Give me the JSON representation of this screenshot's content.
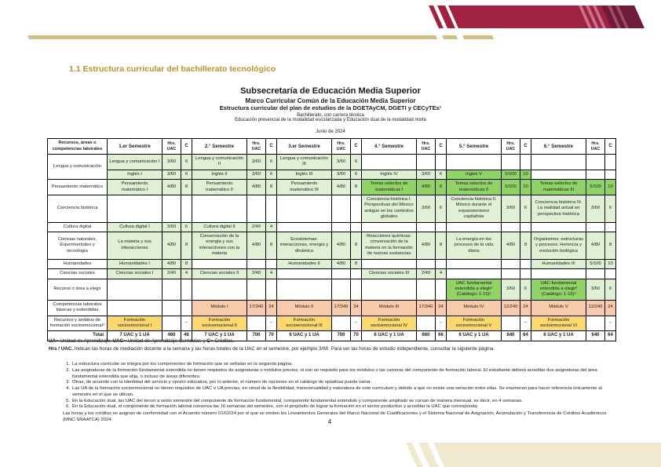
{
  "page": {
    "section_title": "1.1 Estructura curricular del bachillerato tecnológico",
    "number": "4"
  },
  "header": {
    "title": "Subsecretaría de Educación Media Superior",
    "line2": "Marco Curricular Común de la Educación Media Superior",
    "line3": "Estructura curricular del plan de estudios de la DGETAyCM, DGETI y CECyTEs¹",
    "line4": "Bachillerato, con carrera técnica",
    "line5": "Educación presencial de la modalidad escolarizada y Educación dual de la modalidad mixta",
    "date": "Junio de 2024"
  },
  "colors": {
    "guinda": "#9f2241",
    "guinda_dark": "#6d1a3b",
    "gold_line": "#d2bf85",
    "title_gold": "#b8912f",
    "cream_band": "#f0e9cf",
    "green_light": "#dff0d4",
    "green_dark": "#90d468",
    "orange_module": "#f7cbab",
    "yellow_socioemotional": "#fdd870"
  },
  "table": {
    "corner_header": "Recursos, áreas o competencias laborales",
    "hrs_header": "Hrs. UAC",
    "credit_header": "C",
    "semesters": [
      "1.er Semestre",
      "2.° Semestre",
      "3.er Semestre",
      "4.° Semestre",
      "5.° Semestre",
      "6.° Semestre"
    ],
    "rows": [
      {
        "category": "Lengua y comunicación",
        "cat_rows": 2,
        "cells": [
          {
            "label": "Lengua y comunicación I",
            "hrs": "3/60",
            "c": "6",
            "bg": "gl"
          },
          {
            "label": "Lengua y comunicación II",
            "hrs": "3/60",
            "c": "6",
            "bg": "gl"
          },
          {
            "label": "Lengua y comunicación III",
            "hrs": "3/60",
            "c": "6",
            "bg": "gl"
          },
          {
            "label": "",
            "hrs": "",
            "c": "",
            "bg": ""
          },
          {
            "label": "",
            "hrs": "",
            "c": "",
            "bg": ""
          },
          {
            "label": "",
            "hrs": "",
            "c": "",
            "bg": ""
          }
        ]
      },
      {
        "cells": [
          {
            "label": "Inglés I",
            "hrs": "3/60",
            "c": "6",
            "bg": "gl"
          },
          {
            "label": "Inglés II",
            "hrs": "3/60",
            "c": "6",
            "bg": "gl"
          },
          {
            "label": "Inglés III",
            "hrs": "3/60",
            "c": "6",
            "bg": "gl"
          },
          {
            "label": "Inglés IV",
            "hrs": "3/60",
            "c": "6",
            "bg": "gl"
          },
          {
            "label": "Inglés V",
            "hrs": "5/100",
            "c": "10",
            "bg": "gd"
          },
          {
            "label": "",
            "hrs": "",
            "c": "",
            "bg": ""
          }
        ]
      },
      {
        "category": "Pensamiento matemático",
        "cells": [
          {
            "label": "Pensamiento matemático I",
            "hrs": "4/80",
            "c": "8",
            "bg": "gl"
          },
          {
            "label": "Pensamiento matemático II",
            "hrs": "4/80",
            "c": "8",
            "bg": "gl"
          },
          {
            "label": "Pensamiento matemático III",
            "hrs": "4/80",
            "c": "8",
            "bg": "gl"
          },
          {
            "label": "Temas selectos de matemáticas I",
            "hrs": "4/80",
            "c": "8",
            "bg": "gd"
          },
          {
            "label": "Temas selectos de matemáticas II",
            "hrs": "5/100",
            "c": "10",
            "bg": "gd"
          },
          {
            "label": "Temas selectos de matemáticas III",
            "hrs": "5/100",
            "c": "10",
            "bg": "gd"
          }
        ]
      },
      {
        "category": "Conciencia histórica",
        "cells": [
          {
            "label": "",
            "hrs": "",
            "c": "",
            "bg": ""
          },
          {
            "label": "",
            "hrs": "",
            "c": "",
            "bg": ""
          },
          {
            "label": "",
            "hrs": "",
            "c": "",
            "bg": ""
          },
          {
            "label": "Conciencia histórica I. Perspectivas del México antiguo en los contextos globales",
            "hrs": "3/60",
            "c": "6",
            "bg": "gl"
          },
          {
            "label": "Conciencia histórica II. México durante el expansionismo capitalista",
            "hrs": "3/60",
            "c": "6",
            "bg": "gl"
          },
          {
            "label": "Conciencia histórica III. La realidad actual en perspectiva histórica",
            "hrs": "3/60",
            "c": "6",
            "bg": "gl"
          }
        ]
      },
      {
        "category": "Cultura digital",
        "cells": [
          {
            "label": "Cultura digital I",
            "hrs": "3/60",
            "c": "6",
            "bg": "gl"
          },
          {
            "label": "Cultura digital II",
            "hrs": "2/40",
            "c": "4",
            "bg": "gl"
          },
          {
            "label": "",
            "hrs": "",
            "c": "",
            "bg": ""
          },
          {
            "label": "",
            "hrs": "",
            "c": "",
            "bg": ""
          },
          {
            "label": "",
            "hrs": "",
            "c": "",
            "bg": ""
          },
          {
            "label": "",
            "hrs": "",
            "c": "",
            "bg": ""
          }
        ]
      },
      {
        "category": "Ciencias naturales, Experimentales y tecnología",
        "cells": [
          {
            "label": "La materia y sus interacciones",
            "hrs": "4/80",
            "c": "8",
            "bg": "gl"
          },
          {
            "label": "Conservación de la energía y sus interacciones con la materia",
            "hrs": "4/80",
            "c": "8",
            "bg": "gl"
          },
          {
            "label": "Ecosistemas: interacciones, energía y dinámica",
            "hrs": "4/80",
            "c": "8",
            "bg": "gl"
          },
          {
            "label": "Reacciones químicas: conservación de la materia en la formación de nuevas sustancias",
            "hrs": "4/80",
            "c": "8",
            "bg": "gl"
          },
          {
            "label": "La energía en los procesos de la vida diaria",
            "hrs": "4/80",
            "c": "8",
            "bg": "gl"
          },
          {
            "label": "Organismos: estructuras y procesos. Herencia y evolución biológica",
            "hrs": "4/80",
            "c": "8",
            "bg": "gl"
          }
        ]
      },
      {
        "category": "Humanidades",
        "cells": [
          {
            "label": "Humanidades I",
            "hrs": "4/80",
            "c": "8",
            "bg": "gl"
          },
          {
            "label": "",
            "hrs": "",
            "c": "",
            "bg": ""
          },
          {
            "label": "Humanidades II",
            "hrs": "4/80",
            "c": "8",
            "bg": "gl"
          },
          {
            "label": "",
            "hrs": "",
            "c": "",
            "bg": ""
          },
          {
            "label": "",
            "hrs": "",
            "c": "",
            "bg": ""
          },
          {
            "label": "Humanidades III",
            "hrs": "5/100",
            "c": "10",
            "bg": "gl"
          }
        ]
      },
      {
        "category": "Ciencias sociales",
        "cells": [
          {
            "label": "Ciencias sociales I",
            "hrs": "2/40",
            "c": "4",
            "bg": "gl"
          },
          {
            "label": "Ciencias sociales II",
            "hrs": "2/40",
            "c": "4",
            "bg": "gl"
          },
          {
            "label": "",
            "hrs": "",
            "c": "",
            "bg": ""
          },
          {
            "label": "Ciencias sociales III",
            "hrs": "2/40",
            "c": "4",
            "bg": "gl"
          },
          {
            "label": "",
            "hrs": "",
            "c": "",
            "bg": ""
          },
          {
            "label": "",
            "hrs": "",
            "c": "",
            "bg": ""
          }
        ]
      },
      {
        "category": "Recurso o área a elegir",
        "cells": [
          {
            "label": "",
            "hrs": "",
            "c": "",
            "bg": ""
          },
          {
            "label": "",
            "hrs": "",
            "c": "",
            "bg": ""
          },
          {
            "label": "",
            "hrs": "",
            "c": "",
            "bg": ""
          },
          {
            "label": "",
            "hrs": "",
            "c": "",
            "bg": ""
          },
          {
            "label": "UAC fundamental extendida a elegir² (Catálogo: 1-15)³",
            "hrs": "3/60",
            "c": "6",
            "bg": "gd",
            "hbg": "gl"
          },
          {
            "label": "UAC fundamental extendida a elegir² (Catálogo: 1-15)³",
            "hrs": "3/60",
            "c": "6",
            "bg": "gd",
            "hbg": "gl"
          }
        ]
      },
      {
        "category": "Competencias laborales básicas y extendidas",
        "cells": [
          {
            "label": "",
            "hrs": "",
            "c": "",
            "bg": ""
          },
          {
            "label": "Módulo I",
            "hrs": "17/340",
            "c": "34",
            "bg": "or"
          },
          {
            "label": "Módulo II",
            "hrs": "17/340",
            "c": "34",
            "bg": "or"
          },
          {
            "label": "Módulo III",
            "hrs": "17/340",
            "c": "34",
            "bg": "or"
          },
          {
            "label": "Módulo IV",
            "hrs": "12/240",
            "c": "24",
            "bg": "or"
          },
          {
            "label": "Módulo V",
            "hrs": "12/240",
            "c": "24",
            "bg": "or"
          }
        ]
      },
      {
        "category": "Recursos y ámbitos de formación socioemocional⁴",
        "cells": [
          {
            "label": "Formación socioemocional I",
            "hrs": "",
            "c": "--",
            "bg": "ye",
            "hbg": ""
          },
          {
            "label": "Formación socioemocional II",
            "hrs": "",
            "c": "--",
            "bg": "ye",
            "hbg": ""
          },
          {
            "label": "Formación socioemocional III",
            "hrs": "",
            "c": "--",
            "bg": "ye",
            "hbg": ""
          },
          {
            "label": "Formación socioemocional IV",
            "hrs": "",
            "c": "--",
            "bg": "ye",
            "hbg": ""
          },
          {
            "label": "Formación socioemocional V",
            "hrs": "",
            "c": "--",
            "bg": "ye",
            "hbg": ""
          },
          {
            "label": "Formación socioemocional VI",
            "hrs": "",
            "c": "--",
            "bg": "ye",
            "hbg": ""
          }
        ]
      },
      {
        "category": "Total",
        "total": true,
        "cells": [
          {
            "label": "7 UAC y 1 UA",
            "hrs": "460",
            "c": "46",
            "bg": ""
          },
          {
            "label": "7 UAC y 1 UA",
            "hrs": "700",
            "c": "70",
            "bg": ""
          },
          {
            "label": "6 UAC y 1 UA",
            "hrs": "700",
            "c": "70",
            "bg": ""
          },
          {
            "label": "6 UAC y 1 UA",
            "hrs": "660",
            "c": "66",
            "bg": ""
          },
          {
            "label": "6 UAC y 1 UA",
            "hrs": "640",
            "c": "64",
            "bg": ""
          },
          {
            "label": "6 UAC y 1 UA",
            "hrs": "640",
            "c": "64",
            "bg": ""
          }
        ]
      }
    ]
  },
  "legend": {
    "definitions": [
      {
        "term": "UA",
        "rest": "= Unidad de Aprendizaje; "
      },
      {
        "term": "UAC",
        "rest": "= Unidad de Aprendizaje Curricular; y "
      },
      {
        "term": "C",
        "rest": "= Créditos."
      }
    ],
    "hrs_term": "Hrs / UAC.",
    "hrs_text": "Indican las horas de mediación docente a la semana y las horas totales de la UAC en el semestre, por ejemplo 3/60.  Para ver las horas de estudio independiente, consultar la siguiente página."
  },
  "footnotes": {
    "items": [
      {
        "num": "1.",
        "text": "La estructura curricular se integra por los componentes de formación que se señalan en la segunda página."
      },
      {
        "num": "2.",
        "text": "Las asignaturas de la formación fundamental extendida no tienen requisitos de asignaturas o módulos previos, ni son un requisito para los módulos o las carreras del componente de formación laboral. El estudiante deberá acreditar dos asignaturas del área fundamental extendida que elija, o incluso de áreas diferentes."
      },
      {
        "num": "3.",
        "text": "Otras, de acuerdo con la identidad del servicio y opción educativa, por lo anterior, el número de opciones en el catálogo de optativas puede variar."
      },
      {
        "num": "4.",
        "text": "Las UA de la formación socioemocional no tienen requisitos de UAC o UA previas, en virtud de la flexibilidad, transversalidad y naturaleza de este curriculum y debido a que no existe una seriación entre ellas. Se enumeran para hacer referencia únicamente al semestre en el que se ubican."
      },
      {
        "num": "5.",
        "text": "En la Educación dual, las UAC del tercer a sexto semestre del componente de formación fundamental, componente fundamental extendido y componente ampliado se cursan de manera mensual, es decir, en 4 semanas."
      },
      {
        "num": "6.",
        "text": "En la Educación dual, el componente de formación laboral conserva las 16 semanas del semestre, con el propósito de lograr la formación en el sector productivo y acreditar la UAC que corresponda."
      }
    ],
    "closing": "Las horas y los créditos se asignan de conformidad con el Acuerdo número 01/02/24 por el que se emiten los Lineamientos Generales del Marco Nacional de Cualificaciones y el Sistema Nacional de Asignación, Acumulación y Transferencia de Créditos Académicos (MNC-SNAATCA) 2024."
  }
}
